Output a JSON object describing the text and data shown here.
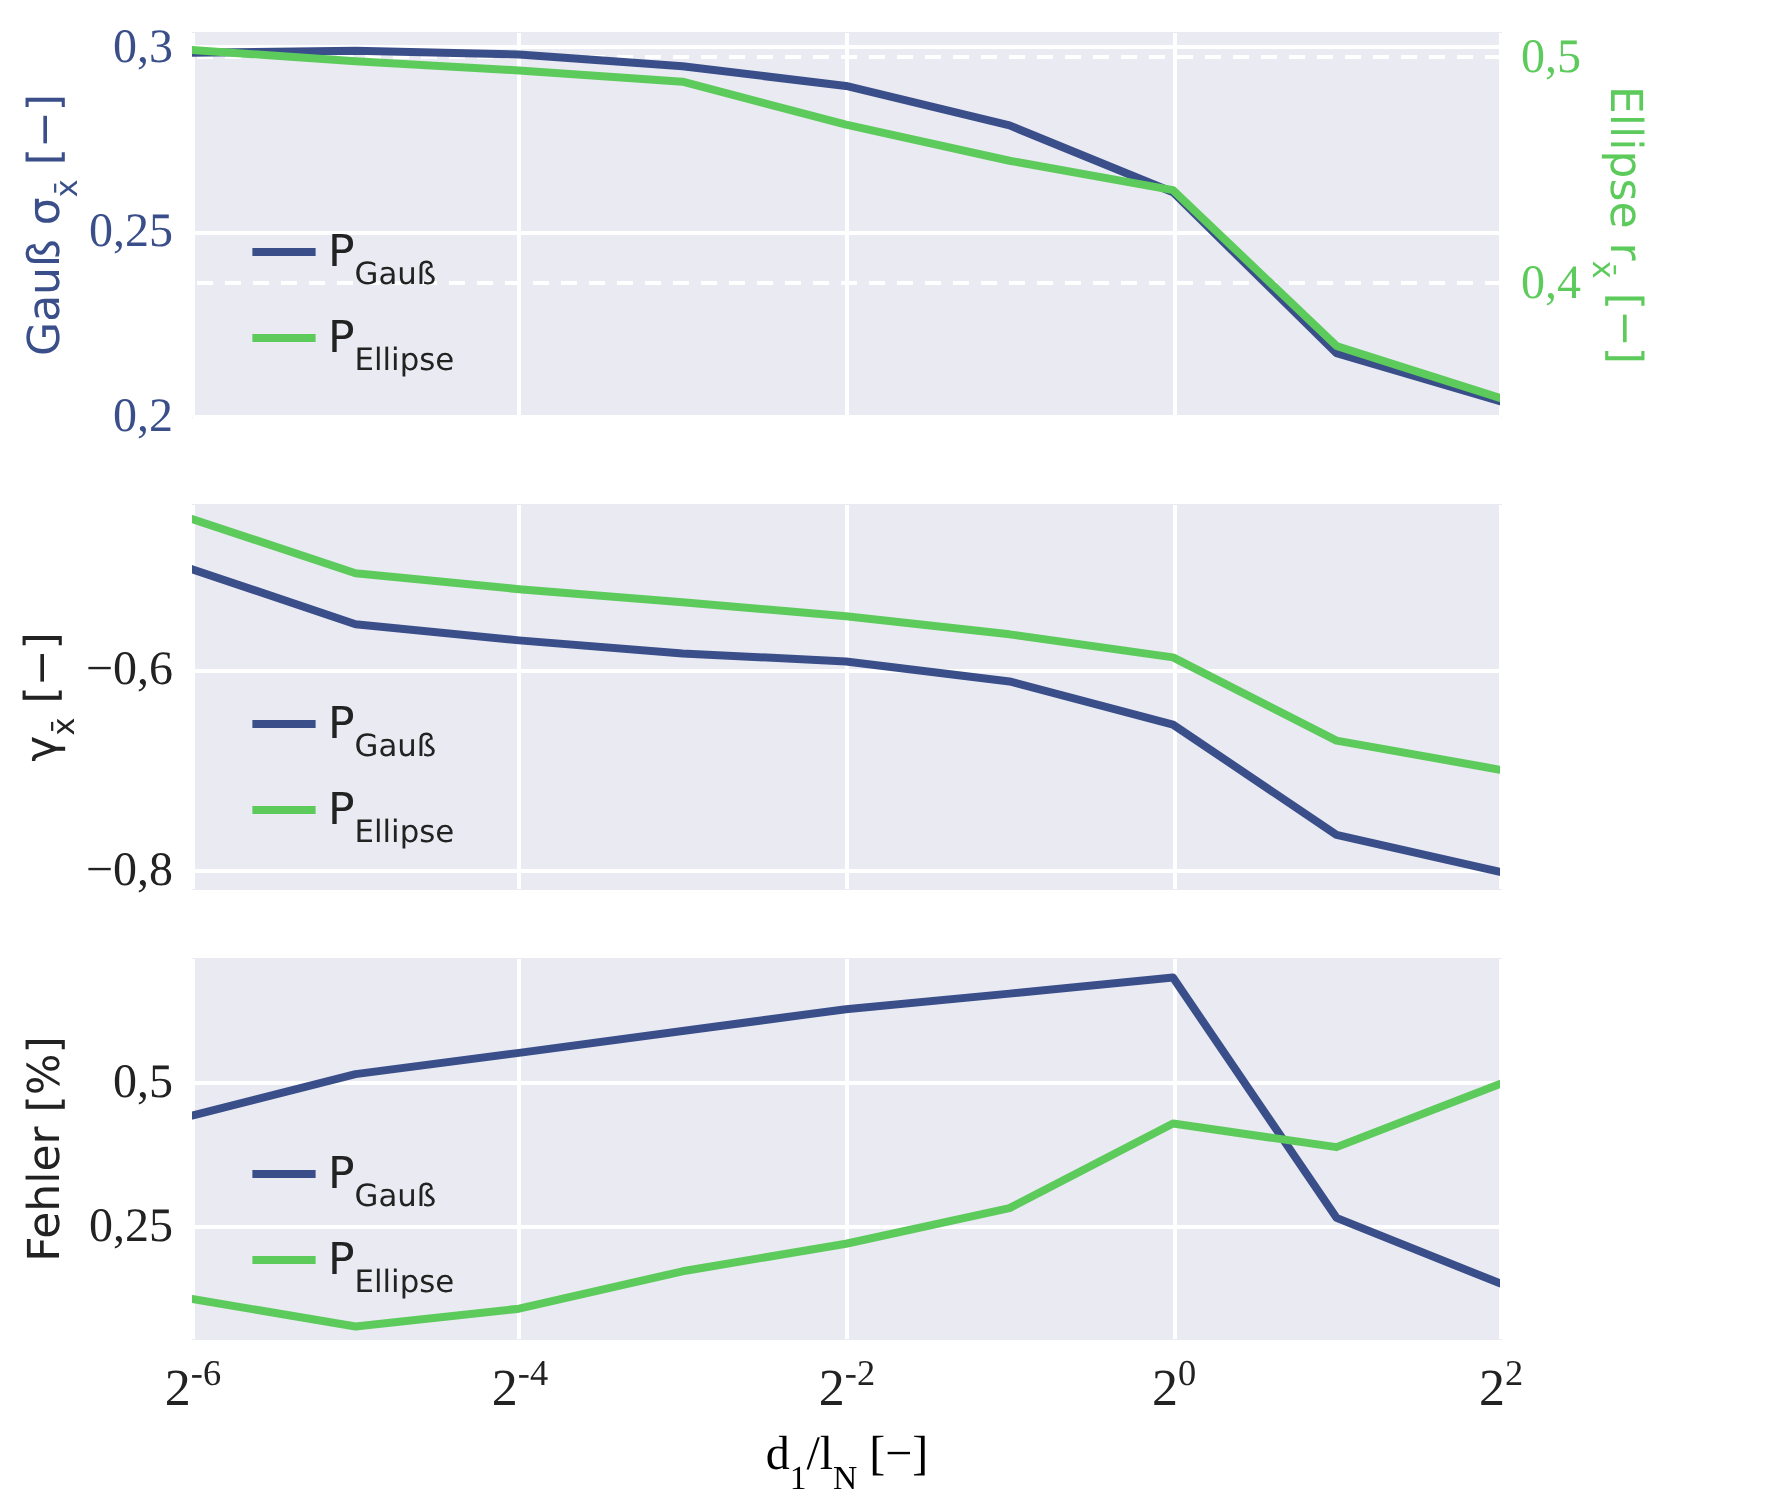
{
  "chart_data": [
    {
      "type": "line",
      "log": "x",
      "x": [
        0.015625,
        0.03125,
        0.0625,
        0.125,
        0.25,
        0.5,
        1,
        2,
        4
      ],
      "xlim": [
        0.015625,
        4
      ],
      "xticks": [
        {
          "value": 0.015625,
          "label": null
        },
        {
          "value": 0.0625,
          "label": null
        },
        {
          "value": 0.25,
          "label": null
        },
        {
          "value": 1,
          "label": null
        },
        {
          "value": 4,
          "label": null
        }
      ],
      "ylabel": "Gauß σ$_{x̄}$ [−]",
      "y2label": "Ellipse r$_{x̄}$ [−]",
      "ylim": [
        0.2,
        0.304
      ],
      "yticks": [
        {
          "value": 0.2,
          "label": "0,2"
        },
        {
          "value": 0.25,
          "label": "0,25"
        },
        {
          "value": 0.3,
          "label": "0,3"
        }
      ],
      "y2lim": [
        0.341,
        0.511
      ],
      "y2ticks": [
        {
          "value": 0.4,
          "label": "0,4"
        },
        {
          "value": 0.5,
          "label": "0,5"
        }
      ],
      "grid": true,
      "legend": "bottom left",
      "tick_labels": "y",
      "series": [
        {
          "name": "P$_{Gauß}$",
          "color": "#3a4f8a",
          "values": [
            0.2984,
            0.2989,
            0.2979,
            0.2947,
            0.2894,
            0.2787,
            0.2606,
            0.217,
            0.204
          ]
        },
        {
          "name": "P$_{Ellipse}$",
          "color": "#5ccb5c",
          "axis": "y2",
          "values": [
            0.503,
            0.498,
            0.494,
            0.489,
            0.47,
            0.454,
            0.441,
            0.372,
            0.349
          ]
        }
      ]
    },
    {
      "type": "line",
      "log": "x",
      "x": [
        0.015625,
        0.03125,
        0.0625,
        0.125,
        0.25,
        0.5,
        1,
        2,
        4
      ],
      "xlim": [
        0.015625,
        4
      ],
      "xticks": [
        {
          "value": 0.015625,
          "label": null
        },
        {
          "value": 0.0625,
          "label": null
        },
        {
          "value": 0.25,
          "label": null
        },
        {
          "value": 1,
          "label": null
        },
        {
          "value": 4,
          "label": null
        }
      ],
      "ylabel": "γ$_{x̄}$ [−]",
      "ylim": [
        -0.818,
        -0.435
      ],
      "yticks": [
        {
          "value": -0.8,
          "label": "−0,8"
        },
        {
          "value": -0.6,
          "label": "−0,6"
        }
      ],
      "grid": true,
      "legend": "bottom left",
      "tick_labels": "y",
      "series": [
        {
          "name": "P$_{Gauß}$",
          "color": "#3a4f8a",
          "values": [
            -0.5,
            -0.555,
            -0.571,
            -0.584,
            -0.592,
            -0.612,
            -0.655,
            -0.765,
            -0.802
          ]
        },
        {
          "name": "P$_{Ellipse}$",
          "color": "#5ccb5c",
          "values": [
            -0.45,
            -0.504,
            -0.52,
            -0.533,
            -0.547,
            -0.565,
            -0.588,
            -0.671,
            -0.7
          ]
        }
      ]
    },
    {
      "type": "line",
      "log": "x",
      "x": [
        0.015625,
        0.03125,
        0.0625,
        0.125,
        0.25,
        0.5,
        1,
        2,
        4
      ],
      "xlim": [
        0.015625,
        4
      ],
      "xticks": [
        {
          "value": 0.015625,
          "label": "2$^{-6}$"
        },
        {
          "value": 0.0625,
          "label": "2$^{-4}$"
        },
        {
          "value": 0.25,
          "label": "2$^{-2}$"
        },
        {
          "value": 1,
          "label": "2$^{0}$"
        },
        {
          "value": 4,
          "label": "2$^{2}$"
        }
      ],
      "xlabel": "d$_{1}$/l$_{N}$ [−]",
      "ylabel": "Fehler   [%]",
      "ylim": [
        0.055,
        0.716
      ],
      "yticks": [
        {
          "value": 0.25,
          "label": "0,25"
        },
        {
          "value": 0.5,
          "label": "0,5"
        }
      ],
      "grid": true,
      "legend": "bottom left",
      "series": [
        {
          "name": "P$_{Gauß}$",
          "color": "#3a4f8a",
          "values": [
            0.442,
            0.514,
            0.551,
            0.589,
            0.627,
            0.654,
            0.682,
            0.264,
            0.15
          ]
        },
        {
          "name": "P$_{Ellipse}$",
          "color": "#5ccb5c",
          "values": [
            0.123,
            0.075,
            0.106,
            0.171,
            0.219,
            0.281,
            0.428,
            0.387,
            0.497
          ]
        }
      ]
    }
  ]
}
